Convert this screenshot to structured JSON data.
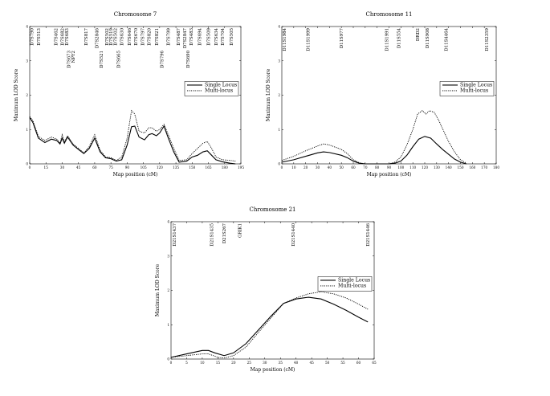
{
  "chart_data": [
    {
      "type": "line",
      "title": "Chromosome 7",
      "xlabel": "Map position (cM)",
      "ylabel": "Maximum LOD Score",
      "xlim": [
        0,
        195
      ],
      "ylim": [
        0,
        4
      ],
      "xticks": [
        "0",
        "15",
        "30",
        "45",
        "60",
        "75",
        "90",
        "105",
        "120",
        "135",
        "150",
        "165",
        "180",
        "195"
      ],
      "yticks": [
        "0",
        "1",
        "2",
        "3",
        "4"
      ],
      "legend_position": "top-right",
      "series": [
        {
          "name": "Single Locus",
          "style": "solid",
          "points": [
            [
              0,
              1.35
            ],
            [
              3,
              1.2
            ],
            [
              8,
              0.75
            ],
            [
              14,
              0.62
            ],
            [
              20,
              0.72
            ],
            [
              25,
              0.68
            ],
            [
              28,
              0.58
            ],
            [
              30,
              0.75
            ],
            [
              32,
              0.6
            ],
            [
              35,
              0.78
            ],
            [
              40,
              0.55
            ],
            [
              45,
              0.42
            ],
            [
              50,
              0.3
            ],
            [
              55,
              0.45
            ],
            [
              60,
              0.75
            ],
            [
              65,
              0.35
            ],
            [
              70,
              0.18
            ],
            [
              75,
              0.15
            ],
            [
              80,
              0.08
            ],
            [
              85,
              0.12
            ],
            [
              90,
              0.55
            ],
            [
              94,
              1.08
            ],
            [
              97,
              1.1
            ],
            [
              101,
              0.78
            ],
            [
              106,
              0.7
            ],
            [
              110,
              0.85
            ],
            [
              113,
              0.88
            ],
            [
              117,
              0.82
            ],
            [
              120,
              0.9
            ],
            [
              124,
              1.1
            ],
            [
              128,
              0.75
            ],
            [
              133,
              0.35
            ],
            [
              138,
              0.05
            ],
            [
              145,
              0.08
            ],
            [
              150,
              0.2
            ],
            [
              155,
              0.25
            ],
            [
              160,
              0.35
            ],
            [
              164,
              0.38
            ],
            [
              168,
              0.25
            ],
            [
              172,
              0.12
            ],
            [
              178,
              0.06
            ],
            [
              185,
              0.02
            ],
            [
              190,
              0.0
            ]
          ]
        },
        {
          "name": "Multi-locus",
          "style": "dotted",
          "points": [
            [
              0,
              1.38
            ],
            [
              3,
              1.25
            ],
            [
              8,
              0.8
            ],
            [
              14,
              0.68
            ],
            [
              20,
              0.78
            ],
            [
              25,
              0.72
            ],
            [
              28,
              0.6
            ],
            [
              30,
              0.85
            ],
            [
              32,
              0.65
            ],
            [
              35,
              0.82
            ],
            [
              40,
              0.58
            ],
            [
              45,
              0.45
            ],
            [
              50,
              0.32
            ],
            [
              55,
              0.5
            ],
            [
              60,
              0.85
            ],
            [
              65,
              0.4
            ],
            [
              70,
              0.2
            ],
            [
              75,
              0.18
            ],
            [
              80,
              0.1
            ],
            [
              85,
              0.2
            ],
            [
              90,
              0.75
            ],
            [
              94,
              1.55
            ],
            [
              97,
              1.45
            ],
            [
              101,
              0.95
            ],
            [
              106,
              0.9
            ],
            [
              110,
              1.05
            ],
            [
              113,
              1.05
            ],
            [
              117,
              0.95
            ],
            [
              120,
              1.0
            ],
            [
              124,
              1.15
            ],
            [
              128,
              0.85
            ],
            [
              133,
              0.45
            ],
            [
              138,
              0.1
            ],
            [
              145,
              0.12
            ],
            [
              150,
              0.3
            ],
            [
              155,
              0.45
            ],
            [
              160,
              0.6
            ],
            [
              164,
              0.65
            ],
            [
              168,
              0.45
            ],
            [
              172,
              0.2
            ],
            [
              178,
              0.12
            ],
            [
              185,
              0.1
            ],
            [
              190,
              0.08
            ]
          ]
        }
      ],
      "markers": [
        {
          "label": "D7S790",
          "x": 2,
          "row": 0
        },
        {
          "label": "D7S513",
          "x": 8,
          "row": 0
        },
        {
          "label": "D7S462",
          "x": 24,
          "row": 0
        },
        {
          "label": "D7S682",
          "x": 30,
          "row": 0
        },
        {
          "label": "D7S683",
          "x": 34,
          "row": 0
        },
        {
          "label": "D7S673",
          "x": 36,
          "row": 1
        },
        {
          "label": "NPY2",
          "x": 40,
          "row": 1
        },
        {
          "label": "D7S817",
          "x": 52,
          "row": 0
        },
        {
          "label": "D7S2846",
          "x": 62,
          "row": 0
        },
        {
          "label": "D7S521",
          "x": 66,
          "row": 1
        },
        {
          "label": "D7S502",
          "x": 71,
          "row": 0
        },
        {
          "label": "D7S519",
          "x": 75,
          "row": 0
        },
        {
          "label": "D7S502",
          "x": 79,
          "row": 0
        },
        {
          "label": "D7S665",
          "x": 82,
          "row": 1
        },
        {
          "label": "D7S630",
          "x": 85,
          "row": 0
        },
        {
          "label": "D7S646",
          "x": 92,
          "row": 0
        },
        {
          "label": "D7S670",
          "x": 98,
          "row": 0
        },
        {
          "label": "D7S797",
          "x": 104,
          "row": 0
        },
        {
          "label": "D7S820",
          "x": 110,
          "row": 0
        },
        {
          "label": "D7S821",
          "x": 117,
          "row": 0
        },
        {
          "label": "D7S796",
          "x": 122,
          "row": 1
        },
        {
          "label": "D7S799",
          "x": 128,
          "row": 0
        },
        {
          "label": "D7S487",
          "x": 137,
          "row": 0
        },
        {
          "label": "D7S2847",
          "x": 143,
          "row": 0
        },
        {
          "label": "D7S690",
          "x": 146,
          "row": 1
        },
        {
          "label": "D7S483",
          "x": 149,
          "row": 0
        },
        {
          "label": "D7S694",
          "x": 157,
          "row": 0
        },
        {
          "label": "D7S509",
          "x": 165,
          "row": 0
        },
        {
          "label": "D7S634",
          "x": 172,
          "row": 0
        },
        {
          "label": "D7S704",
          "x": 178,
          "row": 0
        },
        {
          "label": "D7S505",
          "x": 186,
          "row": 0
        }
      ]
    },
    {
      "type": "line",
      "title": "Chromosome 11",
      "xlabel": "Map position (cM)",
      "ylabel": "Maximum LOD Score",
      "xlim": [
        0,
        180
      ],
      "ylim": [
        0,
        4
      ],
      "xticks": [
        "0",
        "10",
        "20",
        "30",
        "40",
        "50",
        "60",
        "70",
        "80",
        "90",
        "100",
        "110",
        "120",
        "130",
        "140",
        "150",
        "160",
        "170",
        "180"
      ],
      "yticks": [
        "0",
        "1",
        "2",
        "3",
        "4"
      ],
      "legend_position": "top-right",
      "series": [
        {
          "name": "Single Locus",
          "style": "solid",
          "points": [
            [
              0,
              0.05
            ],
            [
              10,
              0.12
            ],
            [
              20,
              0.22
            ],
            [
              30,
              0.32
            ],
            [
              35,
              0.35
            ],
            [
              40,
              0.33
            ],
            [
              50,
              0.25
            ],
            [
              55,
              0.18
            ],
            [
              60,
              0.08
            ],
            [
              65,
              0.02
            ],
            [
              70,
              0.0
            ],
            [
              80,
              0.0
            ],
            [
              90,
              0.0
            ],
            [
              95,
              0.02
            ],
            [
              100,
              0.08
            ],
            [
              105,
              0.25
            ],
            [
              110,
              0.5
            ],
            [
              115,
              0.72
            ],
            [
              120,
              0.8
            ],
            [
              125,
              0.75
            ],
            [
              130,
              0.58
            ],
            [
              135,
              0.42
            ],
            [
              140,
              0.28
            ],
            [
              145,
              0.14
            ],
            [
              150,
              0.05
            ],
            [
              155,
              0.0
            ]
          ]
        },
        {
          "name": "Multi-locus",
          "style": "dotted",
          "points": [
            [
              0,
              0.1
            ],
            [
              10,
              0.22
            ],
            [
              20,
              0.38
            ],
            [
              30,
              0.52
            ],
            [
              35,
              0.58
            ],
            [
              40,
              0.55
            ],
            [
              50,
              0.42
            ],
            [
              55,
              0.3
            ],
            [
              60,
              0.12
            ],
            [
              65,
              0.03
            ],
            [
              70,
              0.0
            ],
            [
              80,
              0.0
            ],
            [
              90,
              0.0
            ],
            [
              95,
              0.05
            ],
            [
              100,
              0.2
            ],
            [
              105,
              0.55
            ],
            [
              110,
              1.0
            ],
            [
              114,
              1.45
            ],
            [
              118,
              1.55
            ],
            [
              121,
              1.45
            ],
            [
              124,
              1.55
            ],
            [
              128,
              1.5
            ],
            [
              132,
              1.25
            ],
            [
              136,
              0.95
            ],
            [
              140,
              0.65
            ],
            [
              145,
              0.35
            ],
            [
              150,
              0.12
            ],
            [
              155,
              0.02
            ]
          ]
        }
      ],
      "markers": [
        {
          "label": "D11S1984",
          "x": 2,
          "row": 0
        },
        {
          "label": "D11S1999",
          "x": 22,
          "row": 0
        },
        {
          "label": "D11S977",
          "x": 50,
          "row": 0
        },
        {
          "label": "D11S1991",
          "x": 88,
          "row": 0
        },
        {
          "label": "D11S554",
          "x": 98,
          "row": 0
        },
        {
          "label": "DRD2",
          "x": 114,
          "row": 0
        },
        {
          "label": "D11S908",
          "x": 122,
          "row": 0
        },
        {
          "label": "D11S4464",
          "x": 138,
          "row": 0
        },
        {
          "label": "D11S2359",
          "x": 172,
          "row": 0
        }
      ]
    },
    {
      "type": "line",
      "title": "Chromosome 21",
      "xlabel": "Map position (cM)",
      "ylabel": "Maximum LOD Score",
      "xlim": [
        0,
        65
      ],
      "ylim": [
        0,
        4
      ],
      "xticks": [
        "0",
        "5",
        "10",
        "15",
        "20",
        "25",
        "30",
        "35",
        "40",
        "45",
        "50",
        "55",
        "60",
        "65"
      ],
      "yticks": [
        "0",
        "1",
        "2",
        "3",
        "4"
      ],
      "legend_position": "top-right",
      "series": [
        {
          "name": "Single Locus",
          "style": "solid",
          "points": [
            [
              0,
              0.05
            ],
            [
              5,
              0.15
            ],
            [
              10,
              0.25
            ],
            [
              12,
              0.25
            ],
            [
              14,
              0.18
            ],
            [
              17,
              0.1
            ],
            [
              20,
              0.18
            ],
            [
              24,
              0.45
            ],
            [
              28,
              0.85
            ],
            [
              32,
              1.25
            ],
            [
              36,
              1.62
            ],
            [
              40,
              1.75
            ],
            [
              44,
              1.8
            ],
            [
              48,
              1.75
            ],
            [
              52,
              1.6
            ],
            [
              56,
              1.42
            ],
            [
              60,
              1.22
            ],
            [
              63,
              1.08
            ]
          ]
        },
        {
          "name": "Multi-locus",
          "style": "dotted",
          "points": [
            [
              0,
              0.05
            ],
            [
              5,
              0.1
            ],
            [
              10,
              0.15
            ],
            [
              12,
              0.15
            ],
            [
              15,
              0.05
            ],
            [
              17,
              0.03
            ],
            [
              20,
              0.1
            ],
            [
              24,
              0.35
            ],
            [
              28,
              0.78
            ],
            [
              32,
              1.2
            ],
            [
              36,
              1.62
            ],
            [
              40,
              1.78
            ],
            [
              44,
              1.9
            ],
            [
              48,
              1.96
            ],
            [
              52,
              1.9
            ],
            [
              56,
              1.78
            ],
            [
              60,
              1.6
            ],
            [
              63,
              1.45
            ]
          ]
        }
      ],
      "markers": [
        {
          "label": "D21S1437",
          "x": 1,
          "row": 0
        },
        {
          "label": "D21S1435",
          "x": 13,
          "row": 0
        },
        {
          "label": "D21S267",
          "x": 17,
          "row": 0
        },
        {
          "label": "GRIK1",
          "x": 22,
          "row": 0
        },
        {
          "label": "D21S1440",
          "x": 39,
          "row": 0
        },
        {
          "label": "D21S1446",
          "x": 63,
          "row": 0
        }
      ]
    }
  ]
}
